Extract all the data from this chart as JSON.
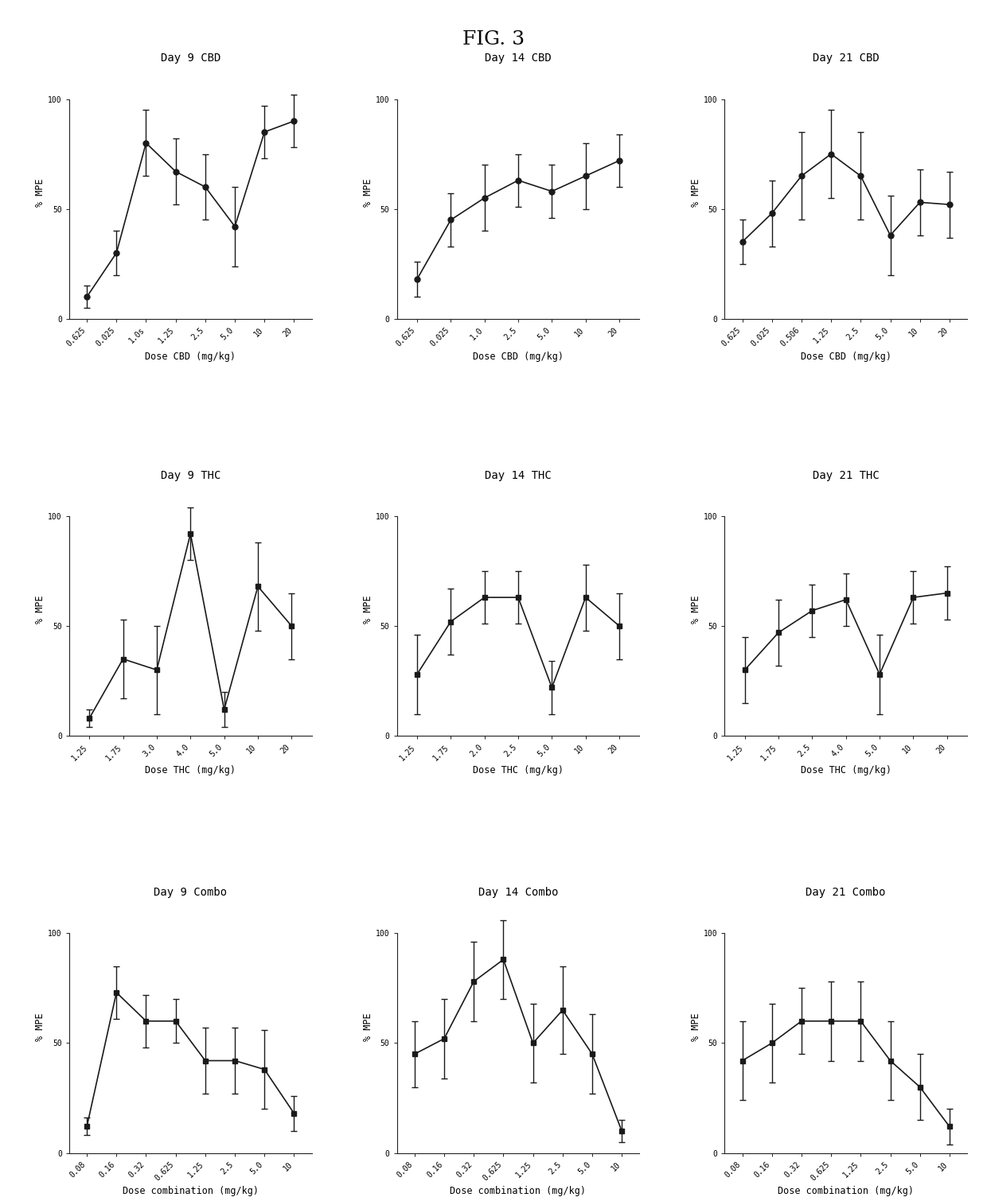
{
  "figure_title": "FIG. 3",
  "subplot_titles": [
    "Day 9 CBD",
    "Day 14 CBD",
    "Day 21 CBD",
    "Day 9 THC",
    "Day 14 THC",
    "Day 21 THC",
    "Day 9 Combo",
    "Day 14 Combo",
    "Day 21 Combo"
  ],
  "xlabels": [
    "Dose CBD (mg/kg)",
    "Dose CBD (mg/kg)",
    "Dose CBD (mg/kg)",
    "Dose THC (mg/kg)",
    "Dose THC (mg/kg)",
    "Dose THC (mg/kg)",
    "Dose combination (mg/kg)",
    "Dose combination (mg/kg)",
    "Dose combination (mg/kg)"
  ],
  "ylabel": "% MPE",
  "xtick_labels": [
    [
      "0.625",
      "0.025",
      "1.0s",
      "1.25",
      "2.5",
      "5.0",
      "10",
      "20"
    ],
    [
      "0.625",
      "0.025",
      "1.0",
      "2.5",
      "5.0",
      "10",
      "20"
    ],
    [
      "0.625",
      "0.025",
      "0.506",
      "1.25",
      "2.5",
      "5.0",
      "10",
      "20"
    ],
    [
      "1.25",
      "1.75",
      "3.0",
      "4.0",
      "5.0",
      "10",
      "20"
    ],
    [
      "1.25",
      "1.75",
      "2.0",
      "2.5",
      "5.0",
      "10",
      "20"
    ],
    [
      "1.25",
      "1.75",
      "2.5",
      "4.0",
      "5.0",
      "10",
      "20"
    ],
    [
      "0.08",
      "0.16",
      "0.32",
      "0.625",
      "1.25",
      "2.5",
      "5.0",
      "10"
    ],
    [
      "0.08",
      "0.16",
      "0.32",
      "0.625",
      "1.25",
      "2.5",
      "5.0",
      "10"
    ],
    [
      "0.08",
      "0.16",
      "0.32",
      "0.625",
      "1.25",
      "2.5",
      "5.0",
      "10"
    ]
  ],
  "plots": [
    {
      "name": "Day 9 CBD",
      "x": [
        1,
        2,
        3,
        4,
        5,
        6,
        7,
        8
      ],
      "y": [
        10,
        30,
        80,
        67,
        60,
        42,
        85,
        90
      ],
      "yerr": [
        5,
        10,
        15,
        15,
        15,
        18,
        12,
        12
      ],
      "marker": "o"
    },
    {
      "name": "Day 14 CBD",
      "x": [
        1,
        2,
        3,
        4,
        5,
        6,
        7
      ],
      "y": [
        18,
        45,
        55,
        63,
        58,
        65,
        72
      ],
      "yerr": [
        8,
        12,
        15,
        12,
        12,
        15,
        12
      ],
      "marker": "o"
    },
    {
      "name": "Day 21 CBD",
      "x": [
        1,
        2,
        3,
        4,
        5,
        6,
        7,
        8
      ],
      "y": [
        35,
        48,
        65,
        75,
        65,
        38,
        53,
        52
      ],
      "yerr": [
        10,
        15,
        20,
        20,
        20,
        18,
        15,
        15
      ],
      "marker": "o"
    },
    {
      "name": "Day 9 THC",
      "x": [
        1,
        2,
        3,
        4,
        5,
        6,
        7
      ],
      "y": [
        8,
        35,
        30,
        92,
        12,
        68,
        50
      ],
      "yerr": [
        4,
        18,
        20,
        12,
        8,
        20,
        15
      ],
      "marker": "s"
    },
    {
      "name": "Day 14 THC",
      "x": [
        1,
        2,
        3,
        4,
        5,
        6,
        7
      ],
      "y": [
        28,
        52,
        63,
        63,
        22,
        63,
        50
      ],
      "yerr": [
        18,
        15,
        12,
        12,
        12,
        15,
        15
      ],
      "marker": "s"
    },
    {
      "name": "Day 21 THC",
      "x": [
        1,
        2,
        3,
        4,
        5,
        6,
        7
      ],
      "y": [
        30,
        47,
        57,
        62,
        28,
        63,
        65
      ],
      "yerr": [
        15,
        15,
        12,
        12,
        18,
        12,
        12
      ],
      "marker": "s"
    },
    {
      "name": "Day 9 Combo",
      "x": [
        1,
        2,
        3,
        4,
        5,
        6,
        7,
        8
      ],
      "y": [
        12,
        73,
        60,
        60,
        42,
        42,
        38,
        18
      ],
      "yerr": [
        4,
        12,
        12,
        10,
        15,
        15,
        18,
        8
      ],
      "marker": "s"
    },
    {
      "name": "Day 14 Combo",
      "x": [
        1,
        2,
        3,
        4,
        5,
        6,
        7,
        8
      ],
      "y": [
        45,
        52,
        78,
        88,
        50,
        65,
        45,
        10
      ],
      "yerr": [
        15,
        18,
        18,
        18,
        18,
        20,
        18,
        5
      ],
      "marker": "s"
    },
    {
      "name": "Day 21 Combo",
      "x": [
        1,
        2,
        3,
        4,
        5,
        6,
        7,
        8
      ],
      "y": [
        42,
        50,
        60,
        60,
        60,
        42,
        30,
        12
      ],
      "yerr": [
        18,
        18,
        15,
        18,
        18,
        18,
        15,
        8
      ],
      "marker": "s"
    }
  ],
  "line_color": "#1a1a1a",
  "marker_color": "#1a1a1a",
  "markersize": 5,
  "linewidth": 1.2,
  "capsize": 3,
  "elinewidth": 1.0,
  "ylim": [
    0,
    115
  ],
  "yticks": [
    0,
    50,
    100
  ],
  "yticklabels": [
    "0",
    "50",
    "100"
  ],
  "bg_color": "#ffffff",
  "title_fontsize": 10,
  "axis_label_fontsize": 8.5,
  "tick_fontsize": 7,
  "title_font": "monospace"
}
